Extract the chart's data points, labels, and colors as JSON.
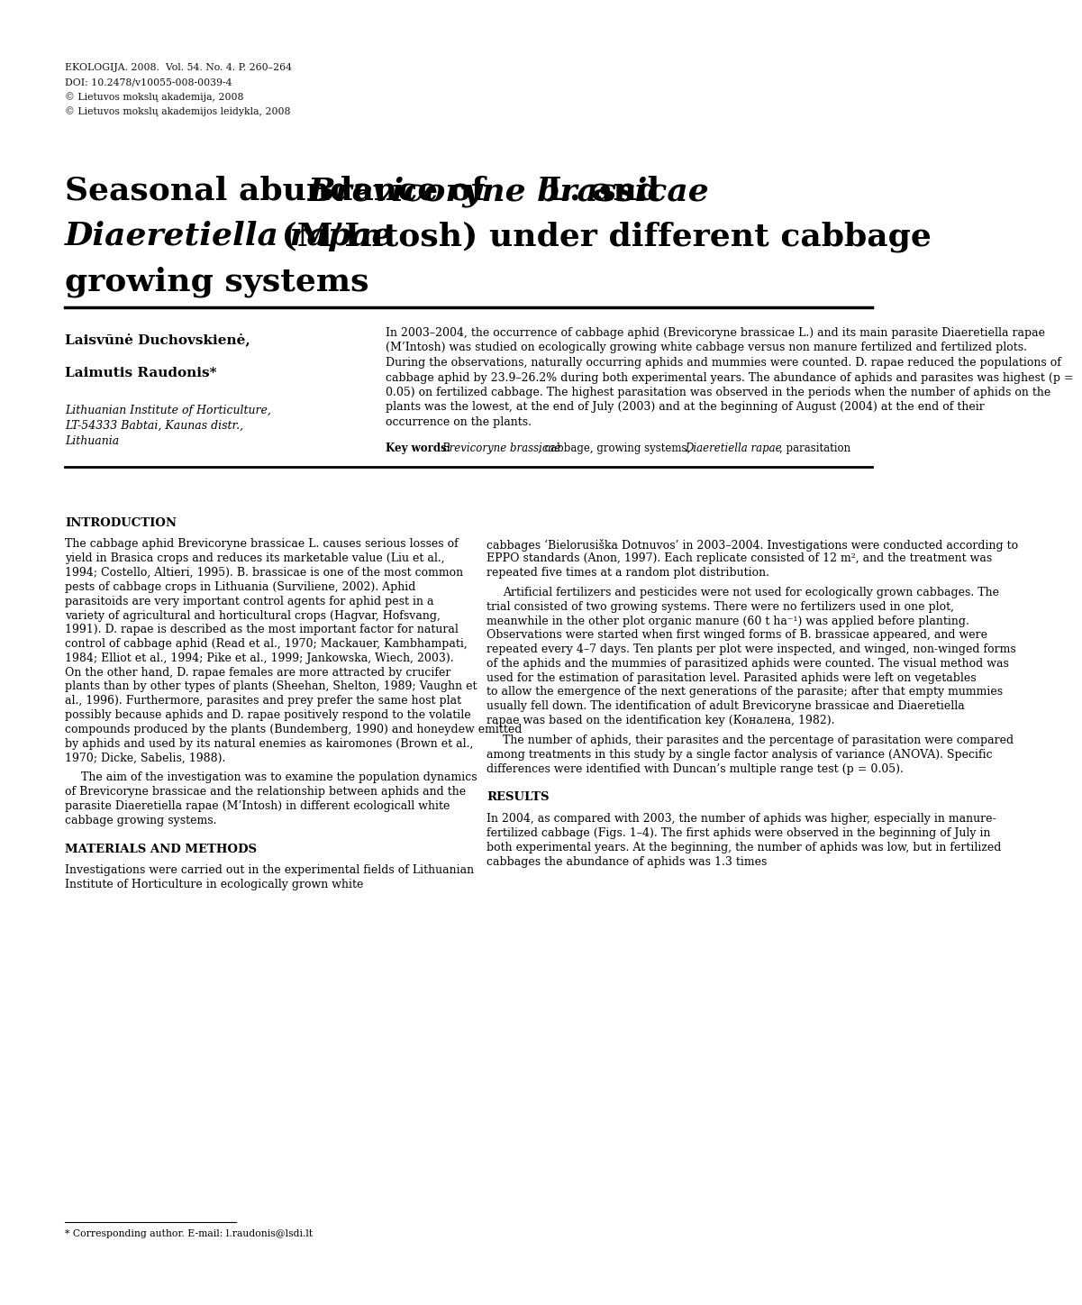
{
  "header_lines": [
    "EKOLOGIJA. 2008.  Vol. 54. No. 4. P. 260–264",
    "DOI: 10.2478/v10055-008-0039-4",
    "© Lietuvos mokslų akademija, 2008",
    "© Lietuvos mokslų akademijos leidykla, 2008"
  ],
  "author1": "Laisvūnė Duchovskienė,",
  "author2": "Laimutis Raudonis*",
  "affiliation_lines": [
    "Lithuanian Institute of Horticulture,",
    "LT-54333 Babtai, Kaunas distr.,",
    "Lithuania"
  ],
  "abstract_para": "In 2003–2004, the occurrence of cabbage aphid (Brevicoryne brassicae L.) and its main parasite Diaeretiella rapae (M’Intosh) was studied on ecologically growing white cabbage versus non manure fertilized and fertilized plots. During the observations, naturally occurring aphids and mummies were counted. D. rapae reduced the populations of cabbage aphid by 23.9–26.2% during both experimental years. The abundance of aphids and parasites was highest (p = 0.05) on fertilized cabbage. The highest parasitation was observed in the periods when the number of aphids on the plants was the lowest, at the end of July (2003) and at the beginning of August (2004) at the end of their occurrence on the plants.",
  "keywords_line": "Key words: Brevicoryne brassicae, cabbage, growing systems, Diaeretiella rapae, parasitation",
  "intro_left_paras": [
    "The cabbage aphid Brevicoryne brassicae L. causes serious losses of yield in Brasica crops and reduces its marketable value (Liu et al., 1994; Costello, Altieri, 1995). B. brassicae is one of the most common pests of cabbage crops in Lithuania (Surviliene, 2002). Aphid parasitoids are very important control agents for aphid pest in a variety of agricultural and horticultural crops (Hagvar, Hofsvang, 1991). D. rapae is described as the most important factor for natural control of cabbage aphid (Read et al., 1970; Mackauer, Kambhampati, 1984; Elliot et al., 1994; Pike et al., 1999; Jankowska, Wiech, 2003). On the other hand, D. rapae females are more attracted by crucifer plants than by other types of plants (Sheehan, Shelton, 1989; Vaughn et al., 1996). Furthermore, parasites and prey prefer the same host plat possibly because aphids and D. rapae positively respond to the volatile compounds produced by the plants (Bundemberg, 1990) and honeydew emitted by aphids and used by its natural enemies as kairomones (Brown et al., 1970; Dicke, Sabelis, 1988).",
    "The aim of the investigation was to examine the population dynamics of Brevicoryne brassicae and the relationship between aphids and the parasite Diaeretiella rapae (M’Intosh) in different ecologicall white cabbage growing systems."
  ],
  "intro_right_paras": [
    "cabbages ‘Bielorusiška Dotnuvos’ in 2003–2004. Investigations were conducted according to EPPO standards (Anon, 1997). Each replicate consisted of 12 m², and the treatment was repeated five times at a random plot distribution.",
    "Artificial fertilizers and pesticides were not used for ecologically grown cabbages. The trial consisted of two growing systems. There were no fertilizers used in one plot, meanwhile in the other plot organic manure (60 t ha⁻¹) was applied before planting. Observations were started when first winged forms of B. brassicae appeared, and were repeated every 4–7 days. Ten plants per plot were inspected, and winged, non-winged forms of the aphids and the mummies of parasitized aphids were counted. The visual method was used for the estimation of parasitation level. Parasited aphids were left on vegetables to allow the emergence of the next generations of the parasite; after that empty mummies usually fell down. The identification of adult Brevicoryne brassicae and Diaeretiella rapae was based on the identification key (Коналена, 1982).",
    "The number of aphids, their parasites and the percentage of parasitation were compared among treatments in this study by a single factor analysis of variance (ANOVA). Specific differences were identified with Duncan’s multiple range test (p = 0.05)."
  ],
  "materials_paras": [
    "Investigations were carried out in the experimental fields of Lithuanian Institute of Horticulture in ecologically grown white"
  ],
  "results_paras": [
    "In 2004, as compared with 2003, the number of aphids was higher, especially in manure-fertilized cabbage (Figs. 1–4). The first aphids were observed in the beginning of July in both experimental years. At the beginning, the number of aphids was low, but in fertilized cabbages the abundance of aphids was 1.3 times"
  ],
  "footnote": "* Corresponding author. E-mail: l.raudonis@lsdi.lt",
  "bg": "#ffffff"
}
